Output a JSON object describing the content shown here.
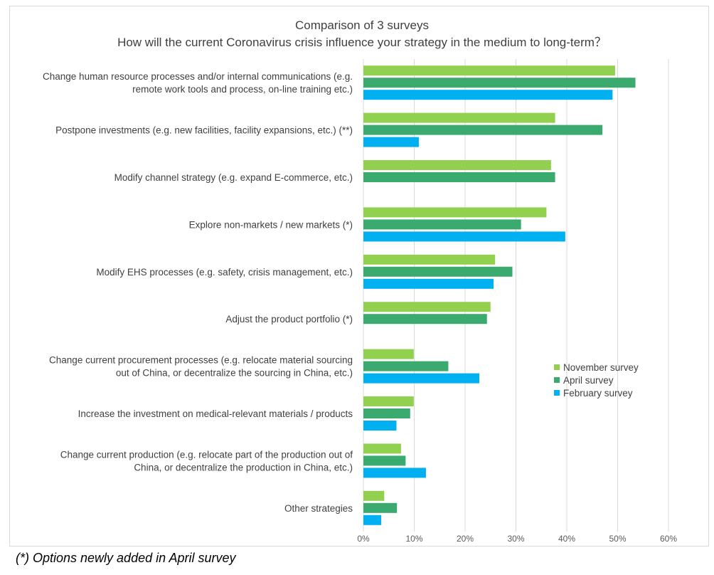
{
  "chart_data": {
    "type": "bar",
    "orientation": "horizontal",
    "title": "Comparison of 3 surveys",
    "subtitle": "How will the current Coronavirus crisis influence your strategy in the medium to long-term？",
    "categories": [
      [
        "Change human resource processes and/or internal communications (e.g.",
        "remote work tools and process, on-line training etc.)"
      ],
      [
        "Postpone investments (e.g. new facilities, facility expansions, etc.) (**)"
      ],
      [
        "Modify channel strategy (e.g. expand E-commerce, etc.)"
      ],
      [
        "Explore non-markets / new markets (*)"
      ],
      [
        "Modify EHS processes (e.g. safety, crisis management, etc.)"
      ],
      [
        "Adjust the product portfolio (*)"
      ],
      [
        "Change current procurement processes (e.g. relocate material sourcing",
        "out of China, or decentralize the sourcing in China, etc.)"
      ],
      [
        "Increase the investment on medical-relevant materials / products"
      ],
      [
        "Change current production (e.g. relocate part of the production out of",
        "China, or decentralize the production in China, etc.)"
      ],
      [
        "Other strategies"
      ]
    ],
    "series": [
      {
        "name": "November survey",
        "color": "#92d050",
        "values": [
          49.5,
          37.7,
          36.9,
          36.0,
          25.9,
          25.0,
          9.9,
          9.9,
          7.4,
          4.1
        ]
      },
      {
        "name": "April survey",
        "color": "#3aaa6e",
        "values": [
          53.5,
          47.0,
          37.7,
          31.0,
          29.3,
          24.3,
          16.7,
          9.2,
          8.3,
          6.6
        ]
      },
      {
        "name": "February survey",
        "color": "#00b0f0",
        "values": [
          49.0,
          10.9,
          null,
          39.7,
          25.6,
          null,
          22.8,
          6.5,
          12.3,
          3.5
        ]
      }
    ],
    "xlim": [
      0,
      60
    ],
    "xticks": [
      0,
      10,
      20,
      30,
      40,
      50,
      60
    ],
    "xtick_labels": [
      "0%",
      "10%",
      "20%",
      "30%",
      "40%",
      "50%",
      "60%"
    ],
    "grid": true,
    "legend_position": "right"
  },
  "footnote": "(*) Options newly added in April survey"
}
